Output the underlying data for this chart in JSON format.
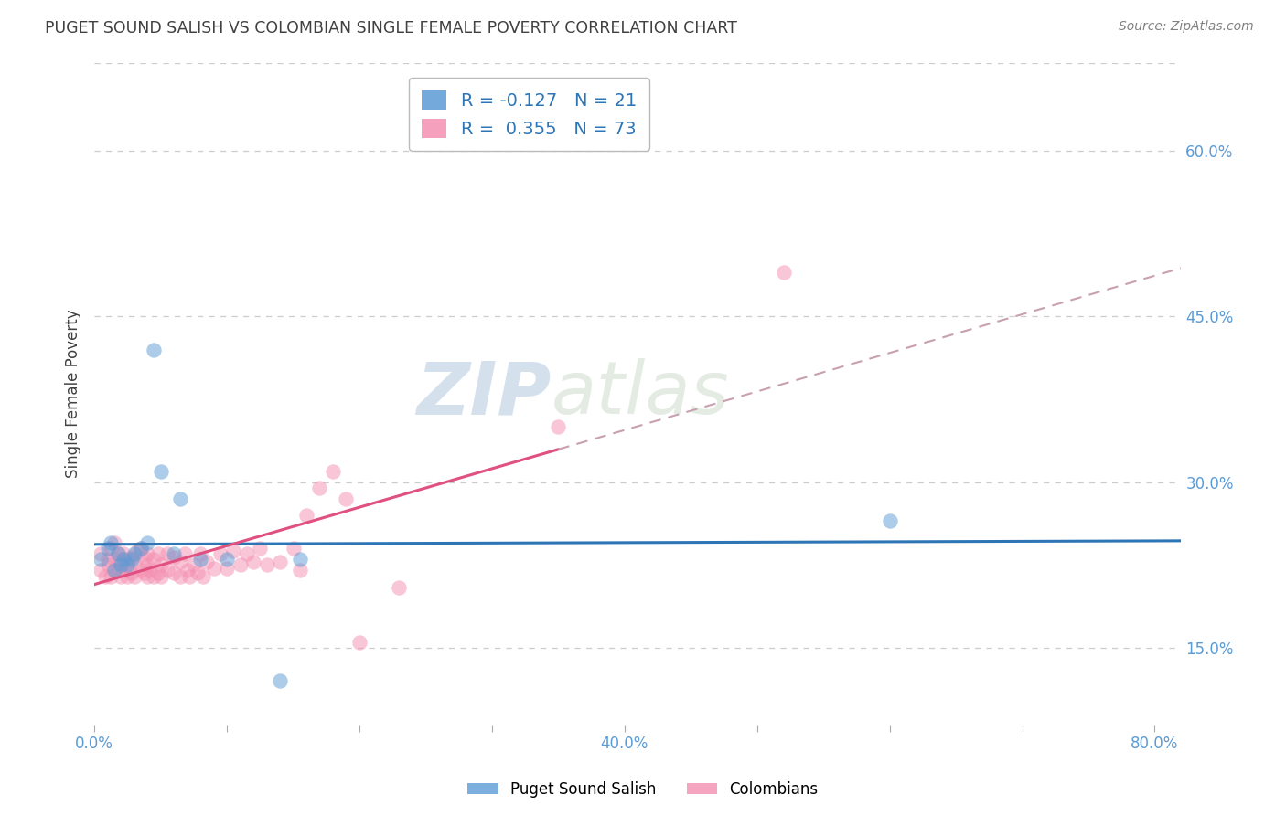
{
  "title": "PUGET SOUND SALISH VS COLOMBIAN SINGLE FEMALE POVERTY CORRELATION CHART",
  "source": "Source: ZipAtlas.com",
  "xlim": [
    0.0,
    0.82
  ],
  "ylim": [
    0.08,
    0.68
  ],
  "xticks": [
    0.0,
    0.1,
    0.2,
    0.3,
    0.4,
    0.5,
    0.6,
    0.7,
    0.8
  ],
  "xtick_labels_show": [
    0.0,
    0.4,
    0.8
  ],
  "ytick_positions": [
    0.15,
    0.3,
    0.45,
    0.6
  ],
  "ytick_labels": [
    "15.0%",
    "30.0%",
    "45.0%",
    "60.0%"
  ],
  "watermark_zip": "ZIP",
  "watermark_atlas": "atlas",
  "blue_label": "Puget Sound Salish",
  "pink_label": "Colombians",
  "legend_blue_text": "R = -0.127   N = 21",
  "legend_pink_text": "R =  0.355   N = 73",
  "blue_color": "#5B9BD5",
  "pink_color": "#F48FB1",
  "blue_line_color": "#2E75B6",
  "pink_line_color": "#E05080",
  "pink_dash_color": "#C8A0B0",
  "dot_alpha": 0.5,
  "dot_size": 140,
  "background_color": "#FFFFFF",
  "grid_color": "#CCCCCC",
  "title_color": "#404040",
  "source_color": "#808080",
  "axis_tick_color": "#5B9BD5",
  "ylabel": "Single Female Poverty",
  "blue_scatter_x": [
    0.005,
    0.01,
    0.012,
    0.015,
    0.018,
    0.02,
    0.022,
    0.025,
    0.028,
    0.03,
    0.035,
    0.04,
    0.045,
    0.05,
    0.06,
    0.065,
    0.08,
    0.1,
    0.14,
    0.155,
    0.6
  ],
  "blue_scatter_y": [
    0.23,
    0.24,
    0.245,
    0.22,
    0.235,
    0.225,
    0.23,
    0.225,
    0.23,
    0.235,
    0.24,
    0.245,
    0.42,
    0.31,
    0.235,
    0.285,
    0.23,
    0.23,
    0.12,
    0.23,
    0.265
  ],
  "pink_scatter_x": [
    0.005,
    0.005,
    0.008,
    0.01,
    0.01,
    0.012,
    0.012,
    0.015,
    0.015,
    0.015,
    0.018,
    0.018,
    0.02,
    0.02,
    0.02,
    0.022,
    0.022,
    0.025,
    0.025,
    0.025,
    0.028,
    0.028,
    0.03,
    0.03,
    0.032,
    0.035,
    0.035,
    0.038,
    0.038,
    0.04,
    0.04,
    0.04,
    0.042,
    0.045,
    0.045,
    0.048,
    0.048,
    0.05,
    0.05,
    0.055,
    0.055,
    0.06,
    0.06,
    0.065,
    0.065,
    0.068,
    0.07,
    0.072,
    0.075,
    0.078,
    0.08,
    0.082,
    0.085,
    0.09,
    0.095,
    0.1,
    0.105,
    0.11,
    0.115,
    0.12,
    0.125,
    0.13,
    0.14,
    0.15,
    0.155,
    0.16,
    0.17,
    0.18,
    0.19,
    0.2,
    0.23,
    0.35,
    0.52
  ],
  "pink_scatter_y": [
    0.22,
    0.235,
    0.215,
    0.225,
    0.23,
    0.215,
    0.24,
    0.22,
    0.23,
    0.245,
    0.22,
    0.235,
    0.215,
    0.225,
    0.23,
    0.22,
    0.235,
    0.215,
    0.225,
    0.23,
    0.218,
    0.232,
    0.215,
    0.228,
    0.238,
    0.22,
    0.24,
    0.218,
    0.232,
    0.215,
    0.225,
    0.235,
    0.22,
    0.215,
    0.23,
    0.218,
    0.235,
    0.215,
    0.225,
    0.22,
    0.235,
    0.218,
    0.232,
    0.215,
    0.228,
    0.235,
    0.22,
    0.215,
    0.225,
    0.218,
    0.235,
    0.215,
    0.228,
    0.222,
    0.235,
    0.222,
    0.238,
    0.225,
    0.235,
    0.228,
    0.24,
    0.225,
    0.228,
    0.24,
    0.22,
    0.27,
    0.295,
    0.31,
    0.285,
    0.155,
    0.205,
    0.35,
    0.49
  ],
  "pink_line_x_solid_end": 0.35,
  "pink_line_x_dash_start": 0.35
}
